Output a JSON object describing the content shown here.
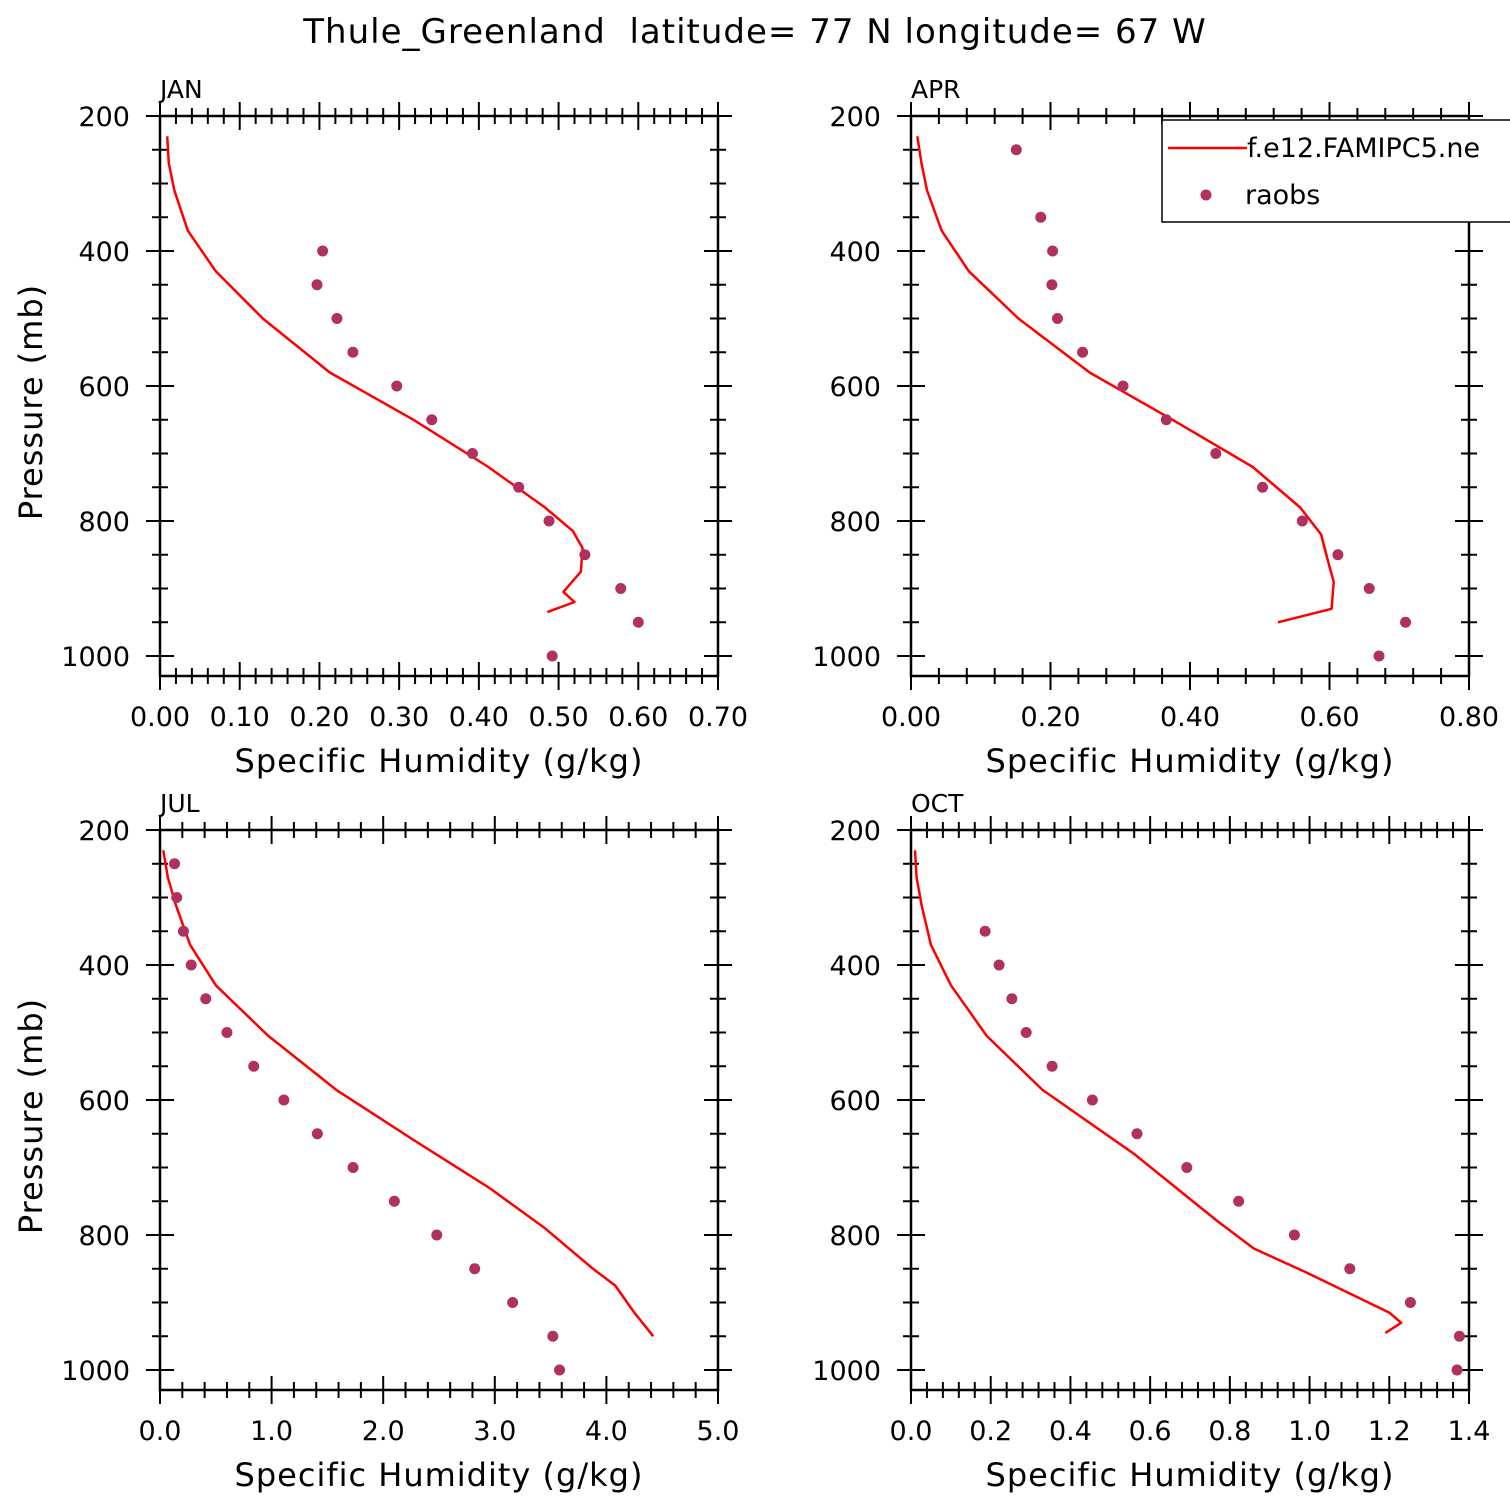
{
  "figure": {
    "title": "Thule_Greenland  latitude= 77 N longitude= 67 W"
  },
  "colors": {
    "model_line": "#ff0000",
    "raobs_marker": "#b03060",
    "axes": "#000000"
  },
  "legend": {
    "entries": [
      {
        "label": "f.e12.FAMIPC5.ne",
        "style": "line"
      },
      {
        "label": "raobs",
        "style": "marker"
      }
    ]
  },
  "chart_data": [
    {
      "type": "scatter",
      "panel": "JAN",
      "xlabel": "Specific Humidity (g/kg)",
      "ylabel": "Pressure (mb)",
      "xlim": [
        0,
        0.7
      ],
      "ylim": [
        1000,
        200
      ],
      "y_reversed": true,
      "xticks": [
        "0.00",
        "0.10",
        "0.20",
        "0.30",
        "0.40",
        "0.50",
        "0.60",
        "0.70"
      ],
      "yticks": [
        "200",
        "400",
        "600",
        "800",
        "1000"
      ],
      "series": [
        {
          "name": "f.e12.FAMIPC5.ne",
          "kind": "line",
          "x": [
            0.009,
            0.011,
            0.018,
            0.035,
            0.07,
            0.129,
            0.213,
            0.318,
            0.412,
            0.483,
            0.518,
            0.53,
            0.528,
            0.506,
            0.52,
            0.486
          ],
          "y": [
            230,
            270,
            310,
            370,
            430,
            500,
            580,
            650,
            720,
            780,
            815,
            840,
            875,
            905,
            920,
            935
          ]
        },
        {
          "name": "raobs",
          "kind": "scatter",
          "x": [
            0.204,
            0.197,
            0.222,
            0.242,
            0.297,
            0.341,
            0.392,
            0.45,
            0.488,
            0.533,
            0.578,
            0.6,
            0.492
          ],
          "y": [
            400,
            450,
            500,
            550,
            600,
            650,
            700,
            750,
            800,
            850,
            900,
            950,
            1000
          ]
        }
      ]
    },
    {
      "type": "scatter",
      "panel": "APR",
      "xlabel": "Specific Humidity (g/kg)",
      "ylabel": "",
      "xlim": [
        0,
        0.8
      ],
      "ylim": [
        1000,
        200
      ],
      "y_reversed": true,
      "xticks": [
        "0.00",
        "0.20",
        "0.40",
        "0.60",
        "0.80"
      ],
      "yticks": [
        "200",
        "400",
        "600",
        "800",
        "1000"
      ],
      "series": [
        {
          "name": "f.e12.FAMIPC5.ne",
          "kind": "line",
          "x": [
            0.009,
            0.015,
            0.023,
            0.044,
            0.083,
            0.154,
            0.256,
            0.375,
            0.49,
            0.558,
            0.588,
            0.598,
            0.606,
            0.603,
            0.526
          ],
          "y": [
            230,
            270,
            310,
            370,
            430,
            500,
            580,
            650,
            720,
            780,
            820,
            860,
            890,
            930,
            950
          ]
        },
        {
          "name": "raobs",
          "kind": "scatter",
          "x": [
            0.151,
            0.186,
            0.203,
            0.202,
            0.21,
            0.246,
            0.304,
            0.366,
            0.437,
            0.504,
            0.561,
            0.612,
            0.657,
            0.709,
            0.671
          ],
          "y": [
            250,
            350,
            400,
            450,
            500,
            550,
            600,
            650,
            700,
            750,
            800,
            850,
            900,
            950,
            1000
          ]
        }
      ]
    },
    {
      "type": "scatter",
      "panel": "JUL",
      "xlabel": "Specific Humidity (g/kg)",
      "ylabel": "Pressure (mb)",
      "xlim": [
        0,
        5.0
      ],
      "ylim": [
        1000,
        200
      ],
      "y_reversed": true,
      "xticks": [
        "0.0",
        "1.0",
        "2.0",
        "3.0",
        "4.0",
        "5.0"
      ],
      "yticks": [
        "200",
        "400",
        "600",
        "800",
        "1000"
      ],
      "series": [
        {
          "name": "f.e12.FAMIPC5.ne",
          "kind": "line",
          "x": [
            0.03,
            0.07,
            0.14,
            0.27,
            0.5,
            0.97,
            1.58,
            2.28,
            2.95,
            3.45,
            3.88,
            4.08,
            4.25,
            4.42
          ],
          "y": [
            230,
            270,
            310,
            370,
            430,
            505,
            585,
            660,
            730,
            790,
            850,
            875,
            915,
            950
          ]
        },
        {
          "name": "raobs",
          "kind": "scatter",
          "x": [
            0.13,
            0.15,
            0.21,
            0.28,
            0.41,
            0.6,
            0.84,
            1.11,
            1.41,
            1.73,
            2.1,
            2.48,
            2.82,
            3.16,
            3.52,
            3.58
          ],
          "y": [
            250,
            300,
            350,
            400,
            450,
            500,
            550,
            600,
            650,
            700,
            750,
            800,
            850,
            900,
            950,
            1000
          ]
        }
      ]
    },
    {
      "type": "scatter",
      "panel": "OCT",
      "xlabel": "Specific Humidity (g/kg)",
      "ylabel": "",
      "xlim": [
        0,
        1.4
      ],
      "ylim": [
        1000,
        200
      ],
      "y_reversed": true,
      "xticks": [
        "0.0",
        "0.2",
        "0.4",
        "0.6",
        "0.8",
        "1.0",
        "1.2",
        "1.4"
      ],
      "yticks": [
        "200",
        "400",
        "600",
        "800",
        "1000"
      ],
      "series": [
        {
          "name": "f.e12.FAMIPC5.ne",
          "kind": "line",
          "x": [
            0.01,
            0.014,
            0.026,
            0.05,
            0.1,
            0.19,
            0.33,
            0.56,
            0.77,
            0.86,
            0.99,
            1.2,
            1.23,
            1.19
          ],
          "y": [
            230,
            270,
            310,
            370,
            430,
            505,
            585,
            680,
            780,
            820,
            855,
            915,
            930,
            945
          ]
        },
        {
          "name": "raobs",
          "kind": "scatter",
          "x": [
            0.186,
            0.221,
            0.253,
            0.289,
            0.354,
            0.455,
            0.567,
            0.692,
            0.822,
            0.962,
            1.101,
            1.253,
            1.376,
            1.37
          ],
          "y": [
            350,
            400,
            450,
            500,
            550,
            600,
            650,
            700,
            750,
            800,
            850,
            900,
            950,
            1000
          ]
        }
      ]
    }
  ]
}
